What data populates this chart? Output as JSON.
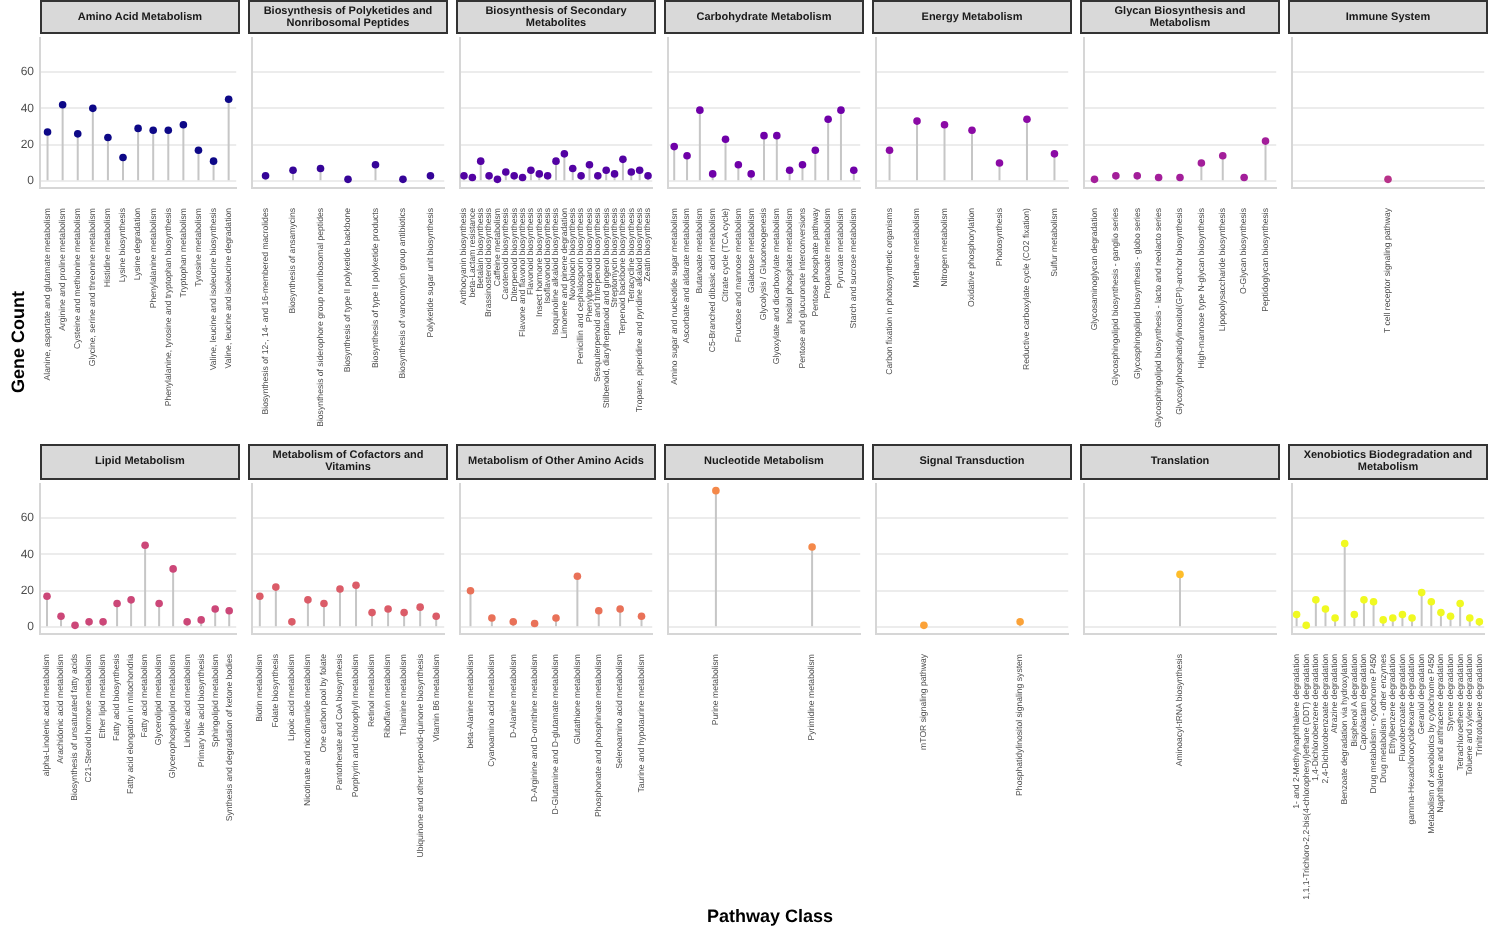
{
  "chart_data": [
    {
      "type": "lollipop",
      "title": "Amino Acid Metabolism",
      "ylabel": "Gene Count",
      "color": "#0d0887",
      "ylim": [
        -3.75,
        78.75
      ],
      "yticks": [
        0,
        20,
        40,
        60
      ],
      "grid": "y",
      "categories": [
        "Alanine, aspartate and glutamate metabolism",
        "Arginine and proline metabolism",
        "Cysteine and methionine metabolism",
        "Glycine, serine and threonine metabolism",
        "Histidine metabolism",
        "Lysine biosynthesis",
        "Lysine degradation",
        "Phenylalanine metabolism",
        "Phenylalanine, tyrosine and tryptophan biosynthesis",
        "Tryptophan metabolism",
        "Tyrosine metabolism",
        "Valine, leucine and isoleucine biosynthesis",
        "Valine, leucine and isoleucine degradation"
      ],
      "values": [
        27,
        42,
        26,
        40,
        24,
        13,
        29,
        28,
        28,
        31,
        17,
        11,
        45
      ]
    },
    {
      "type": "lollipop",
      "title": "Biosynthesis of Polyketides and Nonribosomal Peptides",
      "color": "#350498",
      "ylim": [
        -3.75,
        78.75
      ],
      "yticks": [
        0,
        20,
        40,
        60
      ],
      "grid": "y",
      "tick_labels": "x",
      "categories": [
        "Biosynthesis of 12-, 14- and 16-membered macrolides",
        "Biosynthesis of ansamycins",
        "Biosynthesis of siderophore group nonribosomal peptides",
        "Biosynthesis of type II polyketide backbone",
        "Biosynthesis of type II polyketide products",
        "Biosynthesis of vancomycin group antibiotics",
        "Polyketide sugar unit biosynthesis"
      ],
      "values": [
        3,
        6,
        7,
        1,
        9,
        1,
        3
      ]
    },
    {
      "type": "lollipop",
      "title": "Biosynthesis of Secondary Metabolites",
      "color": "#5302a3",
      "ylim": [
        -3.75,
        78.75
      ],
      "yticks": [
        0,
        20,
        40,
        60
      ],
      "grid": "y",
      "tick_labels": "x",
      "categories": [
        "Anthocyanin biosynthesis",
        "beta-Lactam resistance",
        "Betalain biosynthesis",
        "Brassinosteroid biosynthesis",
        "Caffeine metabolism",
        "Carotenoid biosynthesis",
        "Diterpenoid biosynthesis",
        "Flavone and flavonol biosynthesis",
        "Flavonoid biosynthesis",
        "Insect hormone biosynthesis",
        "Isoflavonoid biosynthesis",
        "Isoquinoline alkaloid biosynthesis",
        "Limonene and pinene degradation",
        "Novobiocin biosynthesis",
        "Penicillin and cephalosporin biosynthesis",
        "Phenylpropanoid biosynthesis",
        "Sesquiterpenoid and triterpenoid biosynthesis",
        "Stilbenoid, diarylheptanoid and gingerol biosynthesis",
        "Streptomycin biosynthesis",
        "Terpenoid backbone biosynthesis",
        "Tetracycline biosynthesis",
        "Tropane, piperidine and pyridine alkaloid biosynthesis",
        "Zeatin biosynthesis"
      ],
      "values": [
        3,
        2,
        11,
        3,
        1,
        5,
        3,
        2,
        6,
        4,
        3,
        11,
        15,
        7,
        3,
        9,
        3,
        6,
        4,
        12,
        5,
        6,
        3
      ]
    },
    {
      "type": "lollipop",
      "title": "Carbohydrate Metabolism",
      "color": "#6f00a8",
      "ylim": [
        -3.75,
        78.75
      ],
      "yticks": [
        0,
        20,
        40,
        60
      ],
      "grid": "y",
      "tick_labels": "x",
      "categories": [
        "Amino sugar and nucleotide sugar metabolism",
        "Ascorbate and aldarate metabolism",
        "Butanoate metabolism",
        "C5-Branched dibasic acid metabolism",
        "Citrate cycle (TCA cycle)",
        "Fructose and mannose metabolism",
        "Galactose metabolism",
        "Glycolysis / Gluconeogenesis",
        "Glyoxylate and dicarboxylate metabolism",
        "Inositol phosphate metabolism",
        "Pentose and glucuronate interconversions",
        "Pentose phosphate pathway",
        "Propanoate metabolism",
        "Pyruvate metabolism",
        "Starch and sucrose metabolism"
      ],
      "values": [
        19,
        14,
        39,
        4,
        23,
        9,
        4,
        25,
        25,
        6,
        9,
        17,
        34,
        39,
        6
      ]
    },
    {
      "type": "lollipop",
      "title": "Energy Metabolism",
      "color": "#8b0aa5",
      "ylim": [
        -3.75,
        78.75
      ],
      "yticks": [
        0,
        20,
        40,
        60
      ],
      "grid": "y",
      "tick_labels": "x",
      "categories": [
        "Carbon fixation in photosynthetic organisms",
        "Methane metabolism",
        "Nitrogen metabolism",
        "Oxidative phosphorylation",
        "Photosynthesis",
        "Reductive carboxylate cycle (CO2 fixation)",
        "Sulfur metabolism"
      ],
      "values": [
        17,
        33,
        31,
        28,
        10,
        34,
        15
      ]
    },
    {
      "type": "lollipop",
      "title": "Glycan Biosynthesis and Metabolism",
      "color": "#a31e9a",
      "ylim": [
        -3.75,
        78.75
      ],
      "yticks": [
        0,
        20,
        40,
        60
      ],
      "grid": "y",
      "tick_labels": "x",
      "categories": [
        "Glycosaminoglycan degradation",
        "Glycosphingolipid biosynthesis - ganglio series",
        "Glycosphingolipid biosynthesis - globo series",
        "Glycosphingolipid biosynthesis - lacto and neolacto series",
        "Glycosylphosphatidylinositol(GPI)-anchor biosynthesis",
        "High-mannose type N-glycan biosynthesis",
        "Lipopolysaccharide biosynthesis",
        "O-Glycan biosynthesis",
        "Peptidoglycan biosynthesis"
      ],
      "values": [
        1,
        3,
        3,
        2,
        2,
        10,
        14,
        2,
        22
      ]
    },
    {
      "type": "lollipop",
      "title": "Immune System",
      "color": "#b83289",
      "ylim": [
        -3.75,
        78.75
      ],
      "yticks": [
        0,
        20,
        40,
        60
      ],
      "grid": "y",
      "tick_labels": "x",
      "categories": [
        "T cell receptor signaling pathway"
      ],
      "values": [
        1
      ]
    },
    {
      "type": "lollipop",
      "title": "Lipid Metabolism",
      "color": "#cc4778",
      "ylim": [
        -3.75,
        78.75
      ],
      "yticks": [
        0,
        20,
        40,
        60
      ],
      "grid": "y",
      "categories": [
        "alpha-Linolenic acid metabolism",
        "Arachidonic acid metabolism",
        "Biosynthesis of unsaturated fatty acids",
        "C21-Steroid hormone metabolism",
        "Ether lipid metabolism",
        "Fatty acid biosynthesis",
        "Fatty acid elongation in mitochondria",
        "Fatty acid metabolism",
        "Glycerolipid metabolism",
        "Glycerophospholipid metabolism",
        "Linoleic acid metabolism",
        "Primary bile acid biosynthesis",
        "Sphingolipid metabolism",
        "Synthesis and degradation of ketone bodies"
      ],
      "values": [
        17,
        6,
        1,
        3,
        3,
        13,
        15,
        45,
        13,
        32,
        3,
        4,
        10,
        9
      ]
    },
    {
      "type": "lollipop",
      "title": "Metabolism of Cofactors and Vitamins",
      "color": "#db5c68",
      "ylim": [
        -3.75,
        78.75
      ],
      "yticks": [
        0,
        20,
        40,
        60
      ],
      "grid": "y",
      "tick_labels": "x",
      "categories": [
        "Biotin metabolism",
        "Folate biosynthesis",
        "Lipoic acid metabolism",
        "Nicotinate and nicotinamide metabolism",
        "One carbon pool by folate",
        "Pantothenate and CoA biosynthesis",
        "Porphyrin and chlorophyll metabolism",
        "Retinol metabolism",
        "Riboflavin metabolism",
        "Thiamine metabolism",
        "Ubiquinone and other terpenoid-quinone biosynthesis",
        "Vitamin B6 metabolism"
      ],
      "values": [
        17,
        22,
        3,
        15,
        13,
        21,
        23,
        8,
        10,
        8,
        11,
        6
      ]
    },
    {
      "type": "lollipop",
      "title": "Metabolism of Other Amino Acids",
      "color": "#e97158",
      "ylim": [
        -3.75,
        78.75
      ],
      "yticks": [
        0,
        20,
        40,
        60
      ],
      "grid": "y",
      "tick_labels": "x",
      "categories": [
        "beta-Alanine metabolism",
        "Cyanoamino acid metabolism",
        "D-Alanine metabolism",
        "D-Arginine and D-ornithine metabolism",
        "D-Glutamine and D-glutamate metabolism",
        "Glutathione metabolism",
        "Phosphonate and phosphinate metabolism",
        "Selenoamino acid metabolism",
        "Taurine and hypotaurine metabolism"
      ],
      "values": [
        20,
        5,
        3,
        2,
        5,
        28,
        9,
        10,
        6
      ]
    },
    {
      "type": "lollipop",
      "title": "Nucleotide Metabolism",
      "color": "#f48849",
      "ylim": [
        -3.75,
        78.75
      ],
      "yticks": [
        0,
        20,
        40,
        60
      ],
      "grid": "y",
      "tick_labels": "x",
      "categories": [
        "Purine metabolism",
        "Pyrimidine metabolism"
      ],
      "values": [
        75,
        44
      ]
    },
    {
      "type": "lollipop",
      "title": "Signal Transduction",
      "xlabel": "Pathway Class",
      "color": "#fba238",
      "ylim": [
        -3.75,
        78.75
      ],
      "yticks": [
        0,
        20,
        40,
        60
      ],
      "grid": "y",
      "tick_labels": "x",
      "categories": [
        "mTOR signaling pathway",
        "Phosphatidylinositol signaling system"
      ],
      "values": [
        1,
        3
      ]
    },
    {
      "type": "lollipop",
      "title": "Translation",
      "color": "#febd2a",
      "ylim": [
        -3.75,
        78.75
      ],
      "yticks": [
        0,
        20,
        40,
        60
      ],
      "grid": "y",
      "tick_labels": "x",
      "categories": [
        "Aminoacyl-tRNA biosynthesis"
      ],
      "values": [
        29
      ]
    },
    {
      "type": "lollipop",
      "title": "Xenobiotics Biodegradation and Metabolism",
      "color": "#f0f921",
      "ylim": [
        -3.75,
        78.75
      ],
      "yticks": [
        0,
        20,
        40,
        60
      ],
      "grid": "y",
      "tick_labels": "x",
      "categories": [
        "1- and 2-Methylnaphthalene degradation",
        "1,1,1-Trichloro-2,2-bis(4-chlorophenyl)ethane (DDT) degradation",
        "1,4-Dichlorobenzene degradation",
        "2,4-Dichlorobenzoate degradation",
        "Atrazine degradation",
        "Benzoate degradation via hydroxylation",
        "Bisphenol A degradation",
        "Caprolactam degradation",
        "Drug metabolism - cytochrome P450",
        "Drug metabolism - other enzymes",
        "Ethylbenzene degradation",
        "Fluorobenzoate degradation",
        "gamma-Hexachlorocyclohexane degradation",
        "Geraniol degradation",
        "Metabolism of xenobiotics by cytochrome P450",
        "Naphthalene and anthracene degradation",
        "Styrene degradation",
        "Tetrachloroethene degradation",
        "Toluene and xylene degradation",
        "Trinitrotoluene degradation"
      ],
      "values": [
        7,
        1,
        15,
        10,
        5,
        46,
        7,
        15,
        14,
        4,
        5,
        7,
        5,
        19,
        14,
        8,
        6,
        13,
        5,
        3
      ]
    }
  ]
}
